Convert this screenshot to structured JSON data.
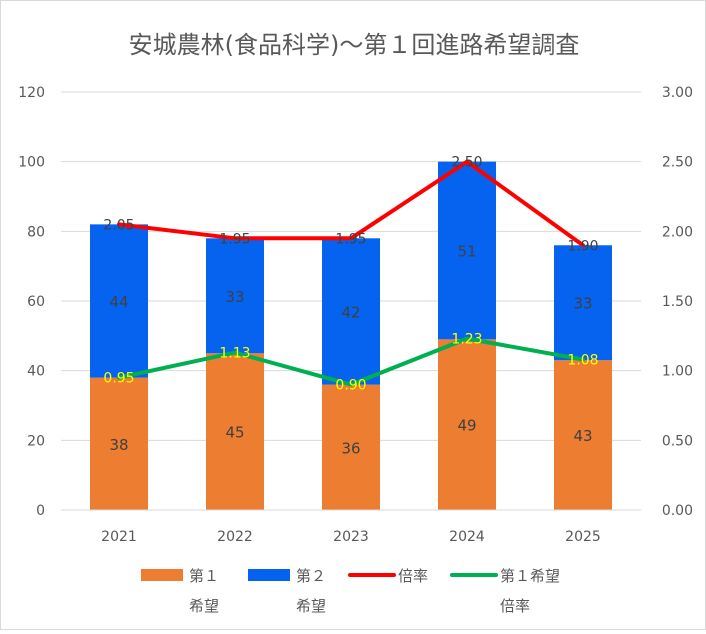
{
  "chart_data": {
    "type": "bar",
    "stacked": true,
    "title": "安城農林(食品科学)～第１回進路希望調査",
    "categories": [
      "2021",
      "2022",
      "2023",
      "2024",
      "2025"
    ],
    "series": [
      {
        "name": "第１希望",
        "type": "bar",
        "axis": "left",
        "color": "#ed7d31",
        "values": [
          38,
          45,
          36,
          49,
          43
        ]
      },
      {
        "name": "第２希望",
        "type": "bar",
        "axis": "left",
        "color": "#0563ef",
        "values": [
          44,
          33,
          42,
          51,
          33
        ]
      },
      {
        "name": "倍率",
        "type": "line",
        "axis": "right",
        "color": "#ff0000",
        "values": [
          2.05,
          1.95,
          1.95,
          2.5,
          1.9
        ],
        "labels": [
          "2.05",
          "1.95",
          "1.95",
          "2.50",
          "1.90"
        ]
      },
      {
        "name": "第１希望倍率",
        "type": "line",
        "axis": "right",
        "color": "#00b050",
        "values": [
          0.95,
          1.13,
          0.9,
          1.23,
          1.08
        ],
        "labels": [
          "0.95",
          "1.13",
          "0.90",
          "1.23",
          "1.08"
        ]
      }
    ],
    "y_left": {
      "min": 0,
      "max": 120,
      "ticks": [
        "0",
        "20",
        "40",
        "60",
        "80",
        "100",
        "120"
      ]
    },
    "y_right": {
      "min": 0,
      "max": 3.0,
      "ticks": [
        "0.00",
        "0.50",
        "1.00",
        "1.50",
        "2.00",
        "2.50",
        "3.00"
      ]
    },
    "grid": true,
    "legend": {
      "position": "bottom",
      "items": [
        {
          "line1": "第１",
          "line2": "希望"
        },
        {
          "line1": "第２",
          "line2": "希望"
        },
        {
          "line1": "倍率",
          "line2": ""
        },
        {
          "line1": "第１希望",
          "line2": "倍率"
        }
      ]
    }
  }
}
